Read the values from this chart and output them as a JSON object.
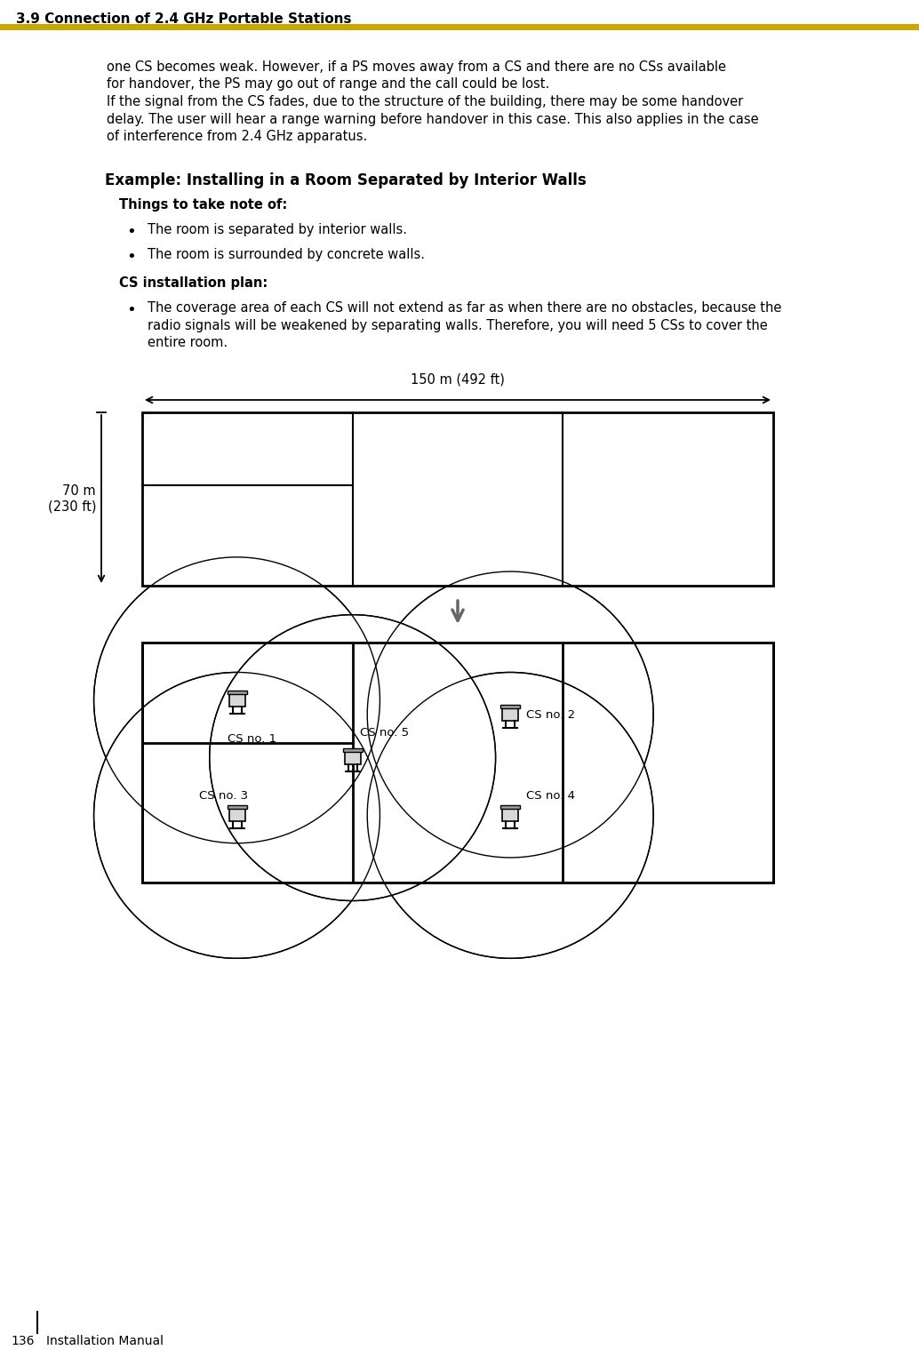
{
  "page_title": "3.9 Connection of 2.4 GHz Portable Stations",
  "footer_page": "136",
  "footer_text": "Installation Manual",
  "header_bar_color": "#C8A800",
  "paragraphs": [
    "one CS becomes weak. However, if a PS moves away from a CS and there are no CSs available",
    "for handover, the PS may go out of range and the call could be lost.",
    "If the signal from the CS fades, due to the structure of the building, there may be some handover",
    "delay. The user will hear a range warning before handover in this case. This also applies in the case",
    "of interference from 2.4 GHz apparatus."
  ],
  "section_title": "Example: Installing in a Room Separated by Interior Walls",
  "subsection1": "Things to take note of:",
  "bullets1": [
    "The room is separated by interior walls.",
    "The room is surrounded by concrete walls."
  ],
  "subsection2": "CS installation plan:",
  "bullets2_lines": [
    "The coverage area of each CS will not extend as far as when there are no obstacles, because the",
    "radio signals will be weakened by separating walls. Therefore, you will need 5 CSs to cover the",
    "entire room."
  ],
  "dimension_label_h": "150 m (492 ft)",
  "dimension_label_v": "70 m\n(230 ft)",
  "cs_labels": [
    "CS no. 1",
    "CS no. 2",
    "CS no. 3",
    "CS no. 4",
    "CS no. 5"
  ],
  "background_color": "#ffffff",
  "text_color": "#000000"
}
